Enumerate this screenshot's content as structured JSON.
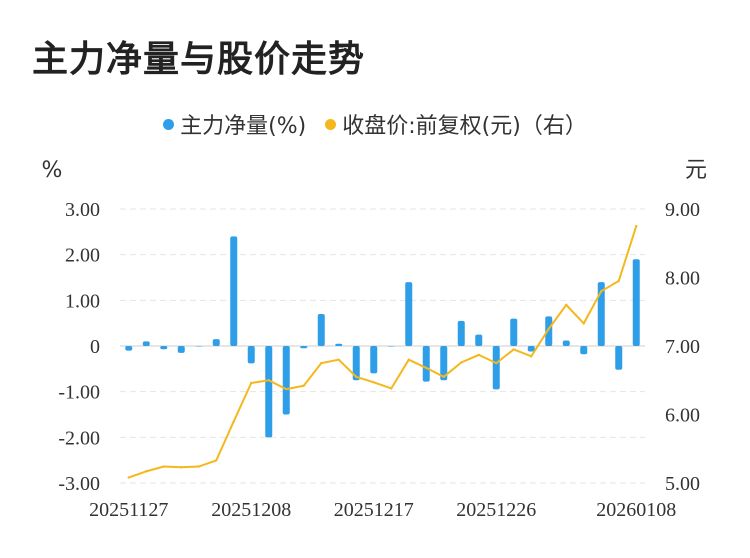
{
  "title": "主力净量与股价走势",
  "colors": {
    "bar": "#2f9ee8",
    "line": "#f5b81c",
    "grid": "#e5e5e5",
    "text": "#333333"
  },
  "chart_data": {
    "type": "bar",
    "legend": {
      "placement": "top-center"
    },
    "y_left": {
      "unit": "%",
      "ticks": [
        "3.00",
        "2.00",
        "1.00",
        "0",
        "-1.00",
        "-2.00",
        "-3.00"
      ],
      "range": [
        -3,
        3
      ]
    },
    "y_right": {
      "unit": "元",
      "ticks": [
        "9.00",
        "8.00",
        "7.00",
        "6.00",
        "5.00"
      ],
      "range": [
        5,
        9
      ]
    },
    "x_ticks": [
      {
        "label": "20251127",
        "index": 0
      },
      {
        "label": "20251208",
        "index": 7
      },
      {
        "label": "20251217",
        "index": 14
      },
      {
        "label": "20251226",
        "index": 21
      },
      {
        "label": "20260108",
        "index": 29
      }
    ],
    "series": [
      {
        "name": "主力净量(%)",
        "type": "bar",
        "values": [
          -0.1,
          0.1,
          -0.07,
          -0.15,
          0.0,
          0.15,
          2.4,
          -0.38,
          -2.0,
          -1.5,
          -0.05,
          0.7,
          0.05,
          -0.75,
          -0.6,
          0.0,
          1.4,
          -0.78,
          -0.75,
          0.55,
          0.25,
          -0.95,
          0.6,
          -0.12,
          0.65,
          0.12,
          -0.18,
          1.4,
          -0.52,
          1.9
        ]
      },
      {
        "name": "收盘价:前复权(元)（右）",
        "type": "line",
        "values": [
          5.08,
          5.17,
          5.24,
          5.23,
          5.24,
          5.33,
          5.9,
          6.46,
          6.5,
          6.37,
          6.42,
          6.75,
          6.8,
          6.55,
          6.47,
          6.38,
          6.8,
          6.68,
          6.55,
          6.76,
          6.87,
          6.75,
          6.95,
          6.85,
          7.25,
          7.6,
          7.33,
          7.8,
          7.95,
          8.75
        ]
      }
    ]
  }
}
